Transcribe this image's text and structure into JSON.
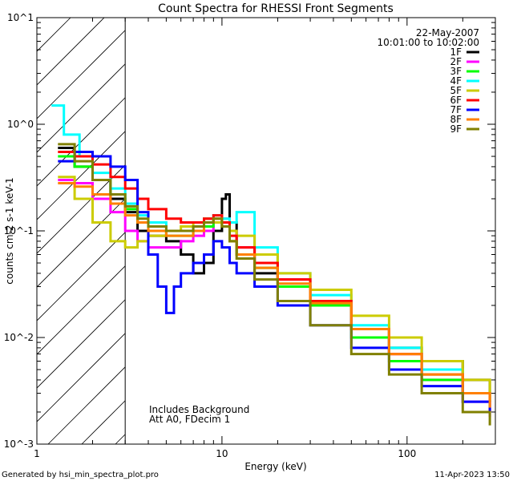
{
  "chart_data": {
    "type": "line",
    "title": "Count Spectra for RHESSI Front Segments",
    "xlabel": "Energy (keV)",
    "ylabel": "counts cm-2 s-1 keV-1",
    "xscale": "log",
    "yscale": "log",
    "xlim": [
      1,
      300
    ],
    "ylim": [
      0.001,
      10
    ],
    "x_tick_labels": [
      "1",
      "10",
      "100"
    ],
    "y_tick_labels": [
      "10^-3",
      "10^-2",
      "10^-1",
      "10^0",
      "10^1"
    ],
    "shaded_region": [
      1,
      3
    ],
    "date": "22-May-2007",
    "time_range": "10:01:00 to 10:02:00",
    "notes": [
      "Includes Background",
      "Att A0, FDecim 1"
    ],
    "legend_position": "top-right",
    "series": [
      {
        "name": "1F",
        "color": "#000000",
        "x": [
          1.3,
          1.6,
          2.0,
          2.5,
          3.0,
          3.5,
          4.0,
          5.0,
          6.0,
          7.0,
          8.0,
          9.0,
          10.0,
          10.5,
          11.0,
          12.0,
          15.0,
          20.0,
          30.0,
          50.0,
          80.0,
          120.0,
          200.0,
          280.0
        ],
        "y": [
          0.6,
          0.4,
          0.3,
          0.2,
          0.15,
          0.1,
          0.09,
          0.08,
          0.06,
          0.04,
          0.05,
          0.1,
          0.2,
          0.22,
          0.12,
          0.06,
          0.04,
          0.03,
          0.02,
          0.012,
          0.008,
          0.006,
          0.004,
          0.003
        ]
      },
      {
        "name": "2F",
        "color": "#ff00ff",
        "x": [
          1.3,
          1.6,
          2.0,
          2.5,
          3.0,
          3.5,
          4.0,
          5.0,
          6.0,
          7.0,
          8.0,
          9.0,
          10.0,
          11.0,
          12.0,
          15.0,
          20.0,
          30.0,
          50.0,
          80.0,
          120.0,
          200.0,
          280.0
        ],
        "y": [
          0.3,
          0.28,
          0.2,
          0.15,
          0.1,
          0.08,
          0.07,
          0.07,
          0.08,
          0.09,
          0.1,
          0.12,
          0.13,
          0.1,
          0.07,
          0.05,
          0.035,
          0.022,
          0.012,
          0.007,
          0.004,
          0.0025,
          0.0018
        ]
      },
      {
        "name": "3F",
        "color": "#00ff00",
        "x": [
          1.3,
          1.6,
          2.0,
          2.5,
          3.0,
          3.5,
          4.0,
          5.0,
          6.0,
          7.0,
          8.0,
          9.0,
          10.0,
          11.0,
          12.0,
          15.0,
          20.0,
          30.0,
          50.0,
          80.0,
          120.0,
          200.0,
          280.0
        ],
        "y": [
          0.5,
          0.4,
          0.3,
          0.22,
          0.16,
          0.12,
          0.1,
          0.09,
          0.09,
          0.1,
          0.11,
          0.12,
          0.11,
          0.08,
          0.06,
          0.045,
          0.03,
          0.02,
          0.01,
          0.006,
          0.004,
          0.003,
          0.0025
        ]
      },
      {
        "name": "4F",
        "color": "#00ffff",
        "x": [
          1.2,
          1.4,
          1.7,
          2.0,
          2.5,
          3.0,
          3.5,
          4.0,
          5.0,
          6.0,
          7.0,
          8.0,
          9.0,
          10.0,
          11.0,
          12.0,
          15.0,
          20.0,
          30.0,
          50.0,
          80.0,
          120.0,
          200.0,
          280.0
        ],
        "y": [
          1.5,
          0.8,
          0.5,
          0.35,
          0.25,
          0.18,
          0.14,
          0.12,
          0.1,
          0.1,
          0.11,
          0.13,
          0.14,
          0.13,
          0.12,
          0.15,
          0.07,
          0.04,
          0.025,
          0.013,
          0.008,
          0.005,
          0.003,
          0.0025
        ]
      },
      {
        "name": "5F",
        "color": "#cccc00",
        "x": [
          1.3,
          1.6,
          2.0,
          2.5,
          3.0,
          3.5,
          4.0,
          5.0,
          6.0,
          7.0,
          8.0,
          9.0,
          10.0,
          11.0,
          12.0,
          15.0,
          20.0,
          30.0,
          50.0,
          80.0,
          120.0,
          200.0,
          280.0
        ],
        "y": [
          0.32,
          0.2,
          0.12,
          0.08,
          0.07,
          0.08,
          0.09,
          0.1,
          0.11,
          0.12,
          0.13,
          0.12,
          0.11,
          0.1,
          0.09,
          0.06,
          0.04,
          0.028,
          0.016,
          0.01,
          0.006,
          0.004,
          0.0025
        ]
      },
      {
        "name": "6F",
        "color": "#ff0000",
        "x": [
          1.3,
          1.6,
          2.0,
          2.5,
          3.0,
          3.5,
          4.0,
          5.0,
          6.0,
          7.0,
          8.0,
          9.0,
          10.0,
          11.0,
          12.0,
          15.0,
          20.0,
          30.0,
          50.0,
          80.0,
          120.0,
          200.0,
          280.0
        ],
        "y": [
          0.55,
          0.5,
          0.42,
          0.32,
          0.25,
          0.2,
          0.16,
          0.13,
          0.12,
          0.12,
          0.13,
          0.14,
          0.12,
          0.09,
          0.07,
          0.05,
          0.035,
          0.022,
          0.012,
          0.007,
          0.0045,
          0.003,
          0.002
        ]
      },
      {
        "name": "7F",
        "color": "#0000ff",
        "x": [
          1.3,
          1.6,
          2.0,
          2.5,
          3.0,
          3.5,
          4.0,
          4.5,
          5.0,
          5.5,
          6.0,
          7.0,
          8.0,
          9.0,
          10.0,
          11.0,
          12.0,
          15.0,
          20.0,
          30.0,
          50.0,
          80.0,
          120.0,
          200.0,
          280.0
        ],
        "y": [
          0.45,
          0.55,
          0.5,
          0.4,
          0.3,
          0.15,
          0.06,
          0.03,
          0.017,
          0.03,
          0.04,
          0.05,
          0.06,
          0.08,
          0.07,
          0.05,
          0.04,
          0.03,
          0.02,
          0.013,
          0.008,
          0.005,
          0.0035,
          0.0025,
          0.002
        ]
      },
      {
        "name": "8F",
        "color": "#ff8000",
        "x": [
          1.3,
          1.6,
          2.0,
          2.5,
          3.0,
          3.5,
          4.0,
          5.0,
          6.0,
          7.0,
          8.0,
          9.0,
          10.0,
          11.0,
          12.0,
          15.0,
          20.0,
          30.0,
          50.0,
          80.0,
          120.0,
          200.0,
          280.0
        ],
        "y": [
          0.28,
          0.26,
          0.22,
          0.18,
          0.14,
          0.12,
          0.1,
          0.09,
          0.09,
          0.1,
          0.12,
          0.13,
          0.11,
          0.08,
          0.06,
          0.045,
          0.032,
          0.021,
          0.012,
          0.007,
          0.0045,
          0.003,
          0.0022
        ]
      },
      {
        "name": "9F",
        "color": "#808000",
        "x": [
          1.3,
          1.6,
          2.0,
          2.5,
          3.0,
          3.5,
          4.0,
          5.0,
          6.0,
          7.0,
          8.0,
          9.0,
          10.0,
          11.0,
          12.0,
          15.0,
          20.0,
          30.0,
          50.0,
          80.0,
          120.0,
          200.0,
          280.0
        ],
        "y": [
          0.65,
          0.45,
          0.3,
          0.22,
          0.17,
          0.13,
          0.11,
          0.1,
          0.1,
          0.11,
          0.12,
          0.13,
          0.11,
          0.08,
          0.055,
          0.035,
          0.022,
          0.013,
          0.007,
          0.0045,
          0.003,
          0.002,
          0.0015
        ]
      }
    ]
  },
  "footer": {
    "left": "Generated by hsi_min_spectra_plot.pro",
    "right": "11-Apr-2023 13:50"
  }
}
